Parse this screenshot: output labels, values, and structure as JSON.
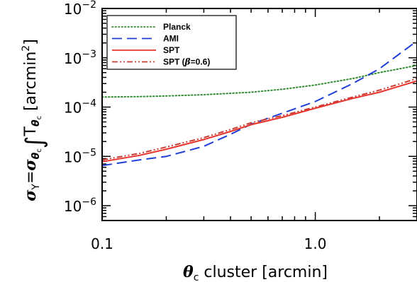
{
  "chart_data": {
    "type": "line",
    "xscale": "log",
    "yscale": "log",
    "xlim": [
      0.1,
      3.0
    ],
    "ylim": [
      5e-07,
      0.01
    ],
    "xticks": [
      {
        "value": 0.1,
        "label": "0.1"
      },
      {
        "value": 1.0,
        "label": "1.0"
      }
    ],
    "yticks": [
      {
        "value": 0.01,
        "base": "10",
        "exp": "−2"
      },
      {
        "value": 0.001,
        "base": "10",
        "exp": "−3"
      },
      {
        "value": 0.0001,
        "base": "10",
        "exp": "−4"
      },
      {
        "value": 1e-05,
        "base": "10",
        "exp": "−5"
      },
      {
        "value": 1e-06,
        "base": "10",
        "exp": "−6"
      }
    ],
    "xlabel": {
      "theta": "θ",
      "sub": "c",
      "rest": " cluster [arcmin]"
    },
    "ylabel": {
      "sigma1": "σ",
      "sub1": "Y",
      "eq": "=",
      "sigma2": "σ",
      "sub2": "θ",
      "sub2b": "c",
      "integral": "∫",
      "T": "T",
      "subT": "θ",
      "subTb": "c",
      "unit": " [arcmin",
      "sup": "2",
      "close": "]"
    },
    "legend_placement": "top-left",
    "series": [
      {
        "name": "Planck",
        "color": "#2e8b2e",
        "style": "dotted",
        "x": [
          0.1,
          0.15,
          0.2,
          0.3,
          0.5,
          0.7,
          1.0,
          1.5,
          2.0,
          3.0
        ],
        "y": [
          0.00016,
          0.000163,
          0.000168,
          0.000178,
          0.0002,
          0.00023,
          0.00028,
          0.00038,
          0.0005,
          0.0007
        ]
      },
      {
        "name": "AMI",
        "color": "#1f3fd8",
        "style": "dashed",
        "x": [
          0.1,
          0.15,
          0.2,
          0.3,
          0.4,
          0.5,
          0.7,
          1.0,
          1.5,
          2.0,
          3.0
        ],
        "y": [
          6.5e-06,
          8.5e-06,
          1e-05,
          1.6e-05,
          2.8e-05,
          4.5e-05,
          7.5e-05,
          0.00013,
          0.0003,
          0.0006,
          0.0022
        ]
      },
      {
        "name": "SPT",
        "color": "#e8322a",
        "style": "solid",
        "x": [
          0.1,
          0.15,
          0.2,
          0.3,
          0.4,
          0.5,
          0.7,
          1.0,
          1.5,
          2.0,
          3.0
        ],
        "y": [
          7.8e-06,
          1.05e-05,
          1.4e-05,
          2.2e-05,
          3.2e-05,
          4.4e-05,
          6.2e-05,
          9.5e-05,
          0.00015,
          0.0002,
          0.00034
        ]
      },
      {
        "name": "SPT (β=0.6)",
        "legend_parts": {
          "pre": "SPT (",
          "beta": "β",
          "post": "=0.6)"
        },
        "color": "#c83c32",
        "style": "dashdotdot",
        "x": [
          0.1,
          0.15,
          0.2,
          0.3,
          0.4,
          0.5,
          0.7,
          1.0,
          1.5,
          2.0,
          3.0
        ],
        "y": [
          8.5e-06,
          1.15e-05,
          1.55e-05,
          2.4e-05,
          3.5e-05,
          4.8e-05,
          6.7e-05,
          0.0001,
          0.00016,
          0.00022,
          0.00038
        ]
      }
    ]
  }
}
